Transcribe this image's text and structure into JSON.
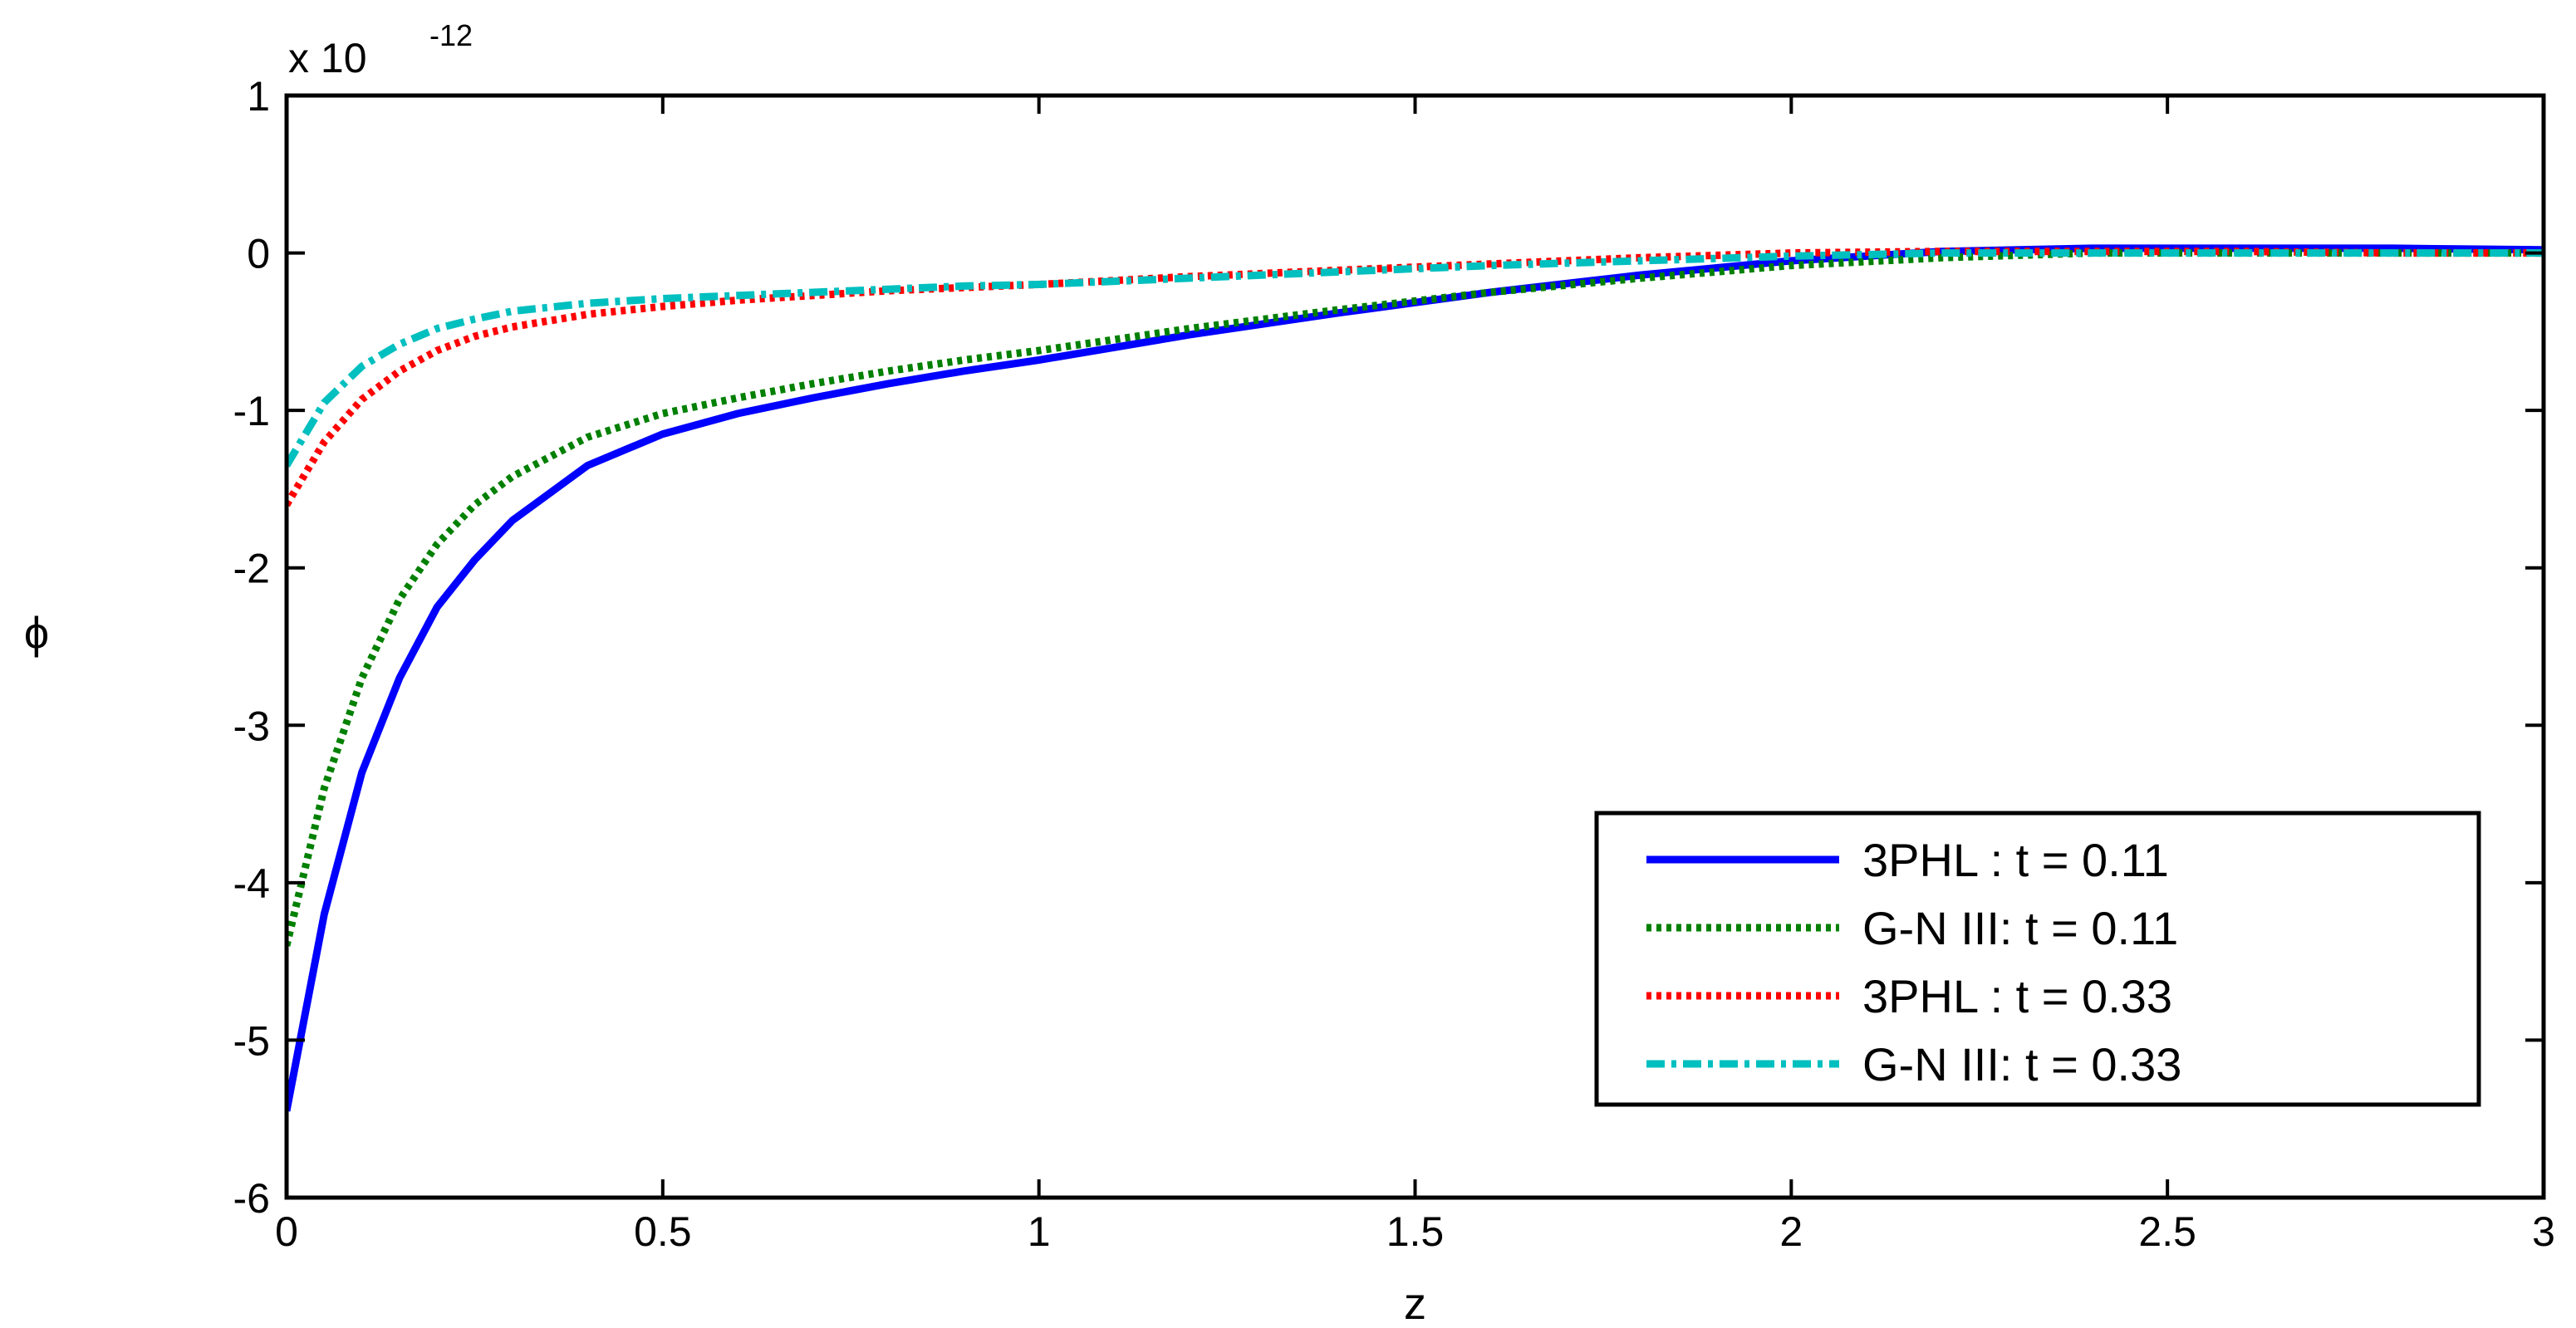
{
  "chart_data": {
    "type": "line",
    "title": "",
    "xlabel": "z",
    "ylabel": "ϕ",
    "xlim": [
      0,
      3
    ],
    "ylim": [
      -6,
      1
    ],
    "y_scale_label": {
      "base": "x 10",
      "exponent": "-12"
    },
    "xticks": [
      0,
      0.5,
      1,
      1.5,
      2,
      2.5,
      3
    ],
    "xtick_labels": [
      "0",
      "0.5",
      "1",
      "1.5",
      "2",
      "2.5",
      "3"
    ],
    "yticks": [
      -6,
      -5,
      -4,
      -3,
      -2,
      -1,
      0,
      1
    ],
    "ytick_labels": [
      "-6",
      "-5",
      "-4",
      "-3",
      "-2",
      "-1",
      "0",
      "1"
    ],
    "grid": false,
    "legend_position": "bottom-right",
    "series": [
      {
        "name": "3PHL : t = 0.11",
        "color": "#0000ff",
        "style": "solid",
        "x": [
          0,
          0.05,
          0.1,
          0.15,
          0.2,
          0.25,
          0.3,
          0.4,
          0.5,
          0.6,
          0.7,
          0.8,
          0.9,
          1.0,
          1.2,
          1.4,
          1.6,
          1.8,
          2.0,
          2.2,
          2.4,
          2.6,
          2.8,
          3.0
        ],
        "y": [
          -5.45,
          -4.2,
          -3.3,
          -2.7,
          -2.25,
          -1.95,
          -1.7,
          -1.35,
          -1.15,
          -1.02,
          -0.92,
          -0.83,
          -0.75,
          -0.68,
          -0.52,
          -0.38,
          -0.25,
          -0.14,
          -0.05,
          0.01,
          0.03,
          0.03,
          0.03,
          0.02
        ]
      },
      {
        "name": "G-N III: t = 0.11",
        "color": "#008000",
        "style": "dotted",
        "x": [
          0,
          0.05,
          0.1,
          0.15,
          0.2,
          0.25,
          0.3,
          0.4,
          0.5,
          0.6,
          0.7,
          0.8,
          0.9,
          1.0,
          1.2,
          1.4,
          1.6,
          1.8,
          2.0,
          2.2,
          2.4,
          2.6,
          2.8,
          3.0
        ],
        "y": [
          -4.4,
          -3.4,
          -2.7,
          -2.2,
          -1.85,
          -1.6,
          -1.42,
          -1.17,
          -1.02,
          -0.92,
          -0.83,
          -0.75,
          -0.68,
          -0.62,
          -0.48,
          -0.36,
          -0.25,
          -0.16,
          -0.08,
          -0.03,
          0.0,
          0.0,
          0.0,
          0.0
        ]
      },
      {
        "name": "3PHL : t = 0.33",
        "color": "#ff0000",
        "style": "dotted",
        "x": [
          0,
          0.05,
          0.1,
          0.15,
          0.2,
          0.25,
          0.3,
          0.4,
          0.5,
          0.6,
          0.7,
          0.8,
          0.9,
          1.0,
          1.2,
          1.4,
          1.6,
          1.8,
          2.0,
          2.2,
          2.4,
          2.6,
          2.8,
          3.0
        ],
        "y": [
          -1.6,
          -1.2,
          -0.93,
          -0.75,
          -0.62,
          -0.53,
          -0.47,
          -0.39,
          -0.34,
          -0.3,
          -0.27,
          -0.24,
          -0.22,
          -0.2,
          -0.15,
          -0.11,
          -0.07,
          -0.03,
          0.0,
          0.01,
          0.01,
          0.01,
          0.0,
          0.0
        ]
      },
      {
        "name": "G-N III: t = 0.33",
        "color": "#00bfbf",
        "style": "dash-dot",
        "x": [
          0,
          0.05,
          0.1,
          0.15,
          0.2,
          0.25,
          0.3,
          0.4,
          0.5,
          0.6,
          0.7,
          0.8,
          0.9,
          1.0,
          1.2,
          1.4,
          1.6,
          1.8,
          2.0,
          2.2,
          2.4,
          2.6,
          2.8,
          3.0
        ],
        "y": [
          -1.35,
          -0.95,
          -0.72,
          -0.58,
          -0.48,
          -0.42,
          -0.37,
          -0.32,
          -0.29,
          -0.27,
          -0.25,
          -0.23,
          -0.21,
          -0.2,
          -0.16,
          -0.12,
          -0.08,
          -0.05,
          -0.02,
          0.0,
          0.0,
          0.0,
          0.0,
          0.0
        ]
      }
    ]
  }
}
